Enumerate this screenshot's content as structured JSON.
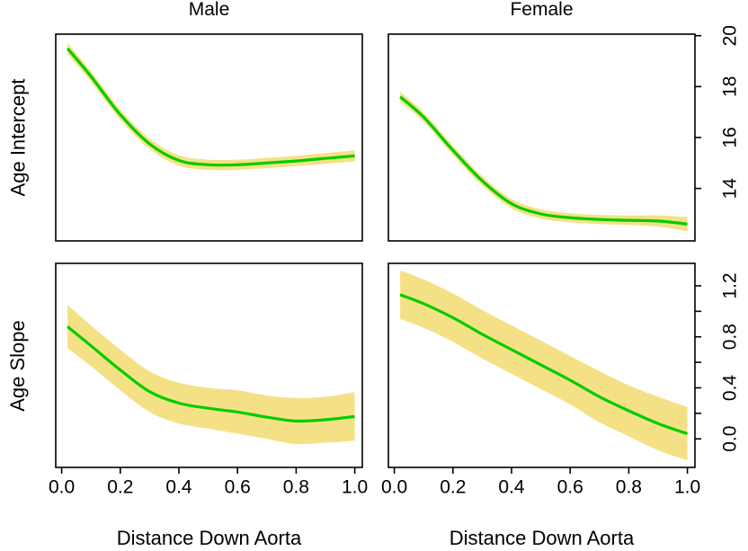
{
  "chart_data": {
    "type": "line",
    "layout": "2x2-panel-grid",
    "columns": [
      "Male",
      "Female"
    ],
    "x_label": "Distance Down Aorta",
    "x_ticks": [
      {
        "value": 0.0,
        "label": "0.0"
      },
      {
        "value": 0.2,
        "label": "0.2"
      },
      {
        "value": 0.4,
        "label": "0.4"
      },
      {
        "value": 0.6,
        "label": "0.6"
      },
      {
        "value": 0.8,
        "label": "0.8"
      },
      {
        "value": 1.0,
        "label": "1.0"
      }
    ],
    "xlim": [
      0,
      1
    ],
    "line_color": "#00CD00",
    "band_color": "#F5E185",
    "border_color": "#000000",
    "grid": "off",
    "legend": "none",
    "rows": [
      {
        "label": "Age Intercept",
        "ylim": [
          11.94,
          20.06
        ],
        "y_ticks": [
          {
            "value": 14,
            "label": "14"
          },
          {
            "value": 16,
            "label": "16"
          },
          {
            "value": 18,
            "label": "18"
          },
          {
            "value": 20,
            "label": "20"
          }
        ]
      },
      {
        "label": "Age Slope",
        "ylim": [
          -0.224,
          1.376
        ],
        "y_ticks": [
          {
            "value": 0.0,
            "label": "0.0"
          },
          {
            "value": 0.2,
            "label": ""
          },
          {
            "value": 0.4,
            "label": "0.4"
          },
          {
            "value": 0.6,
            "label": ""
          },
          {
            "value": 0.8,
            "label": "0.8"
          },
          {
            "value": 1.0,
            "label": ""
          },
          {
            "value": 1.2,
            "label": "1.2"
          }
        ]
      }
    ],
    "x": [
      0.02,
      0.1,
      0.2,
      0.3,
      0.4,
      0.5,
      0.6,
      0.7,
      0.8,
      0.9,
      1.0
    ],
    "panels": [
      {
        "series": "Male Age Intercept",
        "row": 0,
        "col": 0,
        "y": [
          19.5,
          18.4,
          16.9,
          15.75,
          15.1,
          14.93,
          14.93,
          15.0,
          15.08,
          15.18,
          15.28
        ],
        "band_half_width": [
          0.22,
          0.2,
          0.2,
          0.2,
          0.2,
          0.2,
          0.2,
          0.2,
          0.2,
          0.21,
          0.22
        ]
      },
      {
        "series": "Female Age Intercept",
        "row": 0,
        "col": 1,
        "y": [
          17.6,
          16.8,
          15.5,
          14.3,
          13.4,
          13.0,
          12.85,
          12.78,
          12.75,
          12.72,
          12.6
        ],
        "band_half_width": [
          0.2,
          0.18,
          0.18,
          0.18,
          0.18,
          0.18,
          0.18,
          0.18,
          0.19,
          0.22,
          0.28
        ]
      },
      {
        "series": "Male Age Slope",
        "row": 1,
        "col": 0,
        "y": [
          0.88,
          0.73,
          0.54,
          0.37,
          0.28,
          0.24,
          0.21,
          0.17,
          0.14,
          0.15,
          0.175
        ],
        "band_half_width": [
          0.17,
          0.16,
          0.16,
          0.16,
          0.16,
          0.16,
          0.17,
          0.17,
          0.18,
          0.18,
          0.19
        ]
      },
      {
        "series": "Female Age Slope",
        "row": 1,
        "col": 1,
        "y": [
          1.13,
          1.06,
          0.95,
          0.82,
          0.7,
          0.58,
          0.46,
          0.33,
          0.22,
          0.12,
          0.04
        ],
        "band_half_width": [
          0.19,
          0.19,
          0.19,
          0.19,
          0.19,
          0.19,
          0.19,
          0.2,
          0.2,
          0.21,
          0.21
        ]
      }
    ]
  }
}
